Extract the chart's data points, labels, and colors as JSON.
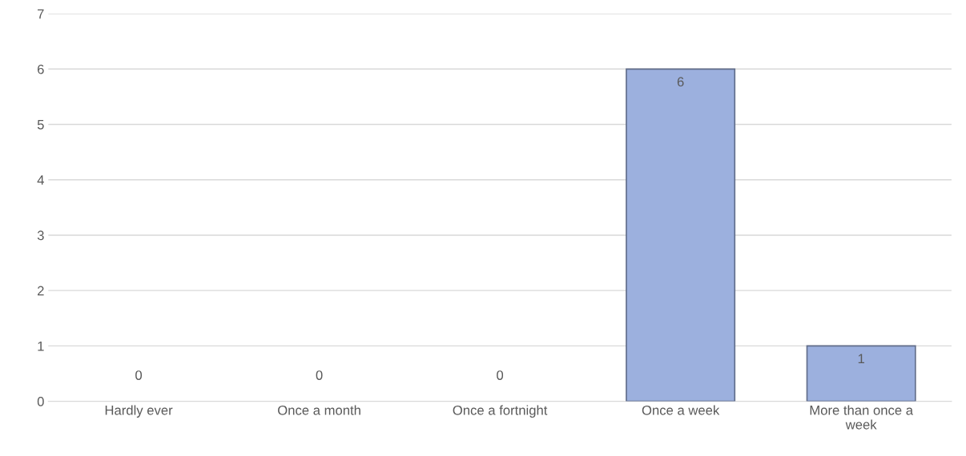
{
  "chart_data": {
    "type": "bar",
    "categories": [
      "Hardly ever",
      "Once a month",
      "Once a fortnight",
      "Once a week",
      "More than once a week"
    ],
    "values": [
      0,
      0,
      0,
      6,
      1
    ],
    "color": "#9cb0de",
    "ylim": [
      0,
      7
    ],
    "yticks": [
      0,
      1,
      2,
      3,
      4,
      5,
      6,
      7
    ],
    "grid": "y",
    "data_labels": true
  }
}
